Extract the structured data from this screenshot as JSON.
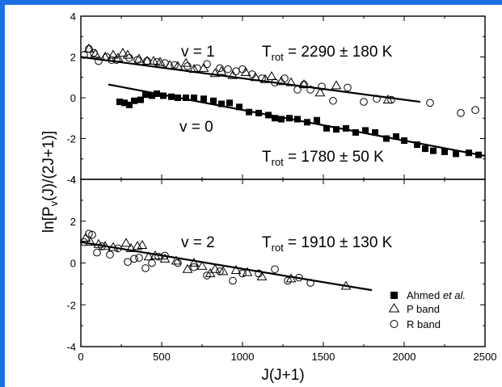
{
  "chart_data": [
    {
      "type": "scatter",
      "panel": "top",
      "xlabel": "J(J+1)",
      "ylabel": "ln[Pv(J)/(2J+1)]",
      "xlim": [
        0,
        2500
      ],
      "ylim": [
        -4,
        4
      ],
      "x_ticks": [
        "0",
        "500",
        "1000",
        "1500",
        "2000",
        "2500"
      ],
      "y_ticks": [
        "4",
        "2",
        "0",
        "-2",
        "-4"
      ],
      "annotations": [
        {
          "text": "v = 1"
        },
        {
          "text": "v = 0"
        },
        {
          "text_main": "T",
          "text_sub": "rot",
          "text_rest": " = 2290 ± 180 K"
        },
        {
          "text_main": "T",
          "text_sub": "rot",
          "text_rest": " = 1780 ± 50 K"
        }
      ],
      "series": [
        {
          "name": "Ahmed et al.",
          "marker": "filled-square",
          "points": [
            [
              240,
              -0.2
            ],
            [
              270,
              -0.25
            ],
            [
              300,
              -0.35
            ],
            [
              330,
              -0.15
            ],
            [
              370,
              -0.1
            ],
            [
              400,
              0.15
            ],
            [
              440,
              0.1
            ],
            [
              470,
              0.2
            ],
            [
              510,
              0.1
            ],
            [
              560,
              0.05
            ],
            [
              600,
              0.0
            ],
            [
              650,
              0.0
            ],
            [
              700,
              0.0
            ],
            [
              760,
              -0.05
            ],
            [
              820,
              -0.15
            ],
            [
              870,
              -0.3
            ],
            [
              920,
              -0.25
            ],
            [
              980,
              -0.45
            ],
            [
              1040,
              -0.7
            ],
            [
              1100,
              -0.75
            ],
            [
              1160,
              -0.85
            ],
            [
              1200,
              -1.0
            ],
            [
              1240,
              -1.05
            ],
            [
              1290,
              -1.0
            ],
            [
              1340,
              -1.05
            ],
            [
              1400,
              -1.2
            ],
            [
              1460,
              -1.1
            ],
            [
              1520,
              -1.5
            ],
            [
              1580,
              -1.55
            ],
            [
              1640,
              -1.5
            ],
            [
              1700,
              -1.7
            ],
            [
              1760,
              -1.6
            ],
            [
              1820,
              -1.7
            ],
            [
              1890,
              -2.0
            ],
            [
              1950,
              -1.9
            ],
            [
              2000,
              -2.1
            ],
            [
              2080,
              -2.3
            ],
            [
              2130,
              -2.5
            ],
            [
              2180,
              -2.6
            ],
            [
              2250,
              -2.65
            ],
            [
              2320,
              -2.75
            ],
            [
              2400,
              -2.7
            ],
            [
              2460,
              -2.8
            ]
          ]
        },
        {
          "name": "P band",
          "marker": "open-triangle",
          "points": [
            [
              50,
              2.4
            ],
            [
              90,
              2.15
            ],
            [
              150,
              2.0
            ],
            [
              200,
              2.1
            ],
            [
              230,
              1.95
            ],
            [
              260,
              2.2
            ],
            [
              290,
              2.1
            ],
            [
              360,
              1.9
            ],
            [
              410,
              1.8
            ],
            [
              450,
              1.8
            ],
            [
              490,
              1.75
            ],
            [
              550,
              1.6
            ],
            [
              600,
              1.55
            ],
            [
              650,
              1.7
            ],
            [
              700,
              1.4
            ],
            [
              760,
              1.45
            ],
            [
              830,
              1.2
            ],
            [
              870,
              1.3
            ],
            [
              940,
              1.1
            ],
            [
              1020,
              1.25
            ],
            [
              1080,
              1.0
            ],
            [
              1140,
              0.9
            ],
            [
              1180,
              1.05
            ],
            [
              1240,
              0.8
            ],
            [
              1300,
              0.75
            ],
            [
              1380,
              0.65
            ],
            [
              1480,
              0.25
            ],
            [
              1580,
              0.6
            ],
            [
              1900,
              -0.1
            ]
          ]
        },
        {
          "name": "R band",
          "marker": "open-circle",
          "points": [
            [
              20,
              2.1
            ],
            [
              50,
              2.4
            ],
            [
              80,
              2.2
            ],
            [
              110,
              1.8
            ],
            [
              160,
              2.0
            ],
            [
              190,
              1.85
            ],
            [
              220,
              1.85
            ],
            [
              300,
              1.95
            ],
            [
              350,
              1.85
            ],
            [
              410,
              1.8
            ],
            [
              470,
              1.75
            ],
            [
              520,
              1.7
            ],
            [
              580,
              1.6
            ],
            [
              660,
              1.55
            ],
            [
              720,
              1.45
            ],
            [
              780,
              1.65
            ],
            [
              860,
              1.45
            ],
            [
              910,
              1.4
            ],
            [
              960,
              1.3
            ],
            [
              1000,
              1.4
            ],
            [
              1060,
              1.15
            ],
            [
              1120,
              0.95
            ],
            [
              1200,
              0.75
            ],
            [
              1260,
              0.95
            ],
            [
              1340,
              0.4
            ],
            [
              1380,
              0.65
            ],
            [
              1420,
              0.4
            ],
            [
              1490,
              0.55
            ],
            [
              1560,
              -0.15
            ],
            [
              1650,
              0.5
            ],
            [
              1750,
              -0.2
            ],
            [
              1830,
              -0.05
            ],
            [
              1920,
              -0.1
            ],
            [
              2160,
              -0.25
            ],
            [
              2350,
              -0.75
            ],
            [
              2440,
              -0.6
            ]
          ]
        }
      ],
      "fit_lines": [
        {
          "x": [
            0,
            2100
          ],
          "y": [
            2.0,
            -0.2
          ]
        },
        {
          "x": [
            170,
            2500
          ],
          "y": [
            0.65,
            -2.85
          ]
        }
      ]
    },
    {
      "type": "scatter",
      "panel": "bottom",
      "xlabel": "J(J+1)",
      "ylabel": "ln[Pv(J)/(2J+1)]",
      "xlim": [
        0,
        2500
      ],
      "ylim": [
        -4,
        4
      ],
      "x_ticks": [
        "0",
        "500",
        "1000",
        "1500",
        "2000",
        "2500"
      ],
      "y_ticks": [
        "4",
        "2",
        "0",
        "-2",
        "-4"
      ],
      "annotations": [
        {
          "text": "v = 2"
        },
        {
          "text_main": "T",
          "text_sub": "rot",
          "text_rest": " = 1910 ± 130 K"
        }
      ],
      "series": [
        {
          "name": "P band",
          "marker": "open-triangle",
          "points": [
            [
              30,
              1.2
            ],
            [
              60,
              1.0
            ],
            [
              110,
              0.9
            ],
            [
              150,
              0.8
            ],
            [
              200,
              0.75
            ],
            [
              280,
              0.95
            ],
            [
              310,
              0.7
            ],
            [
              350,
              0.8
            ],
            [
              380,
              0.85
            ],
            [
              420,
              0.3
            ],
            [
              460,
              0.35
            ],
            [
              520,
              0.2
            ],
            [
              590,
              0.1
            ],
            [
              660,
              -0.3
            ],
            [
              700,
              0.0
            ],
            [
              750,
              -0.15
            ],
            [
              800,
              -0.5
            ],
            [
              830,
              -0.3
            ],
            [
              880,
              -0.4
            ],
            [
              960,
              -0.35
            ],
            [
              1030,
              -0.45
            ],
            [
              1120,
              -0.65
            ],
            [
              1300,
              -0.75
            ],
            [
              1640,
              -1.1
            ]
          ]
        },
        {
          "name": "R band",
          "marker": "open-circle",
          "points": [
            [
              20,
              1.0
            ],
            [
              50,
              1.4
            ],
            [
              70,
              1.35
            ],
            [
              100,
              0.5
            ],
            [
              130,
              0.8
            ],
            [
              180,
              0.4
            ],
            [
              230,
              0.7
            ],
            [
              290,
              0.05
            ],
            [
              330,
              0.2
            ],
            [
              360,
              0.25
            ],
            [
              400,
              -0.25
            ],
            [
              440,
              0.0
            ],
            [
              480,
              0.3
            ],
            [
              520,
              0.35
            ],
            [
              600,
              0.0
            ],
            [
              700,
              -0.2
            ],
            [
              780,
              -0.6
            ],
            [
              860,
              -0.4
            ],
            [
              940,
              -0.85
            ],
            [
              1000,
              -0.5
            ],
            [
              1100,
              -0.5
            ],
            [
              1200,
              -0.3
            ],
            [
              1280,
              -0.85
            ],
            [
              1350,
              -0.7
            ],
            [
              1420,
              -0.95
            ]
          ]
        }
      ],
      "fit_lines": [
        {
          "x": [
            0,
            1800
          ],
          "y": [
            1.0,
            -1.3
          ]
        }
      ]
    }
  ],
  "legend": {
    "placement": "bottom-right",
    "entries": [
      {
        "marker": "filled-square",
        "label_main": "Ahmed ",
        "label_italic": "et al."
      },
      {
        "marker": "open-triangle",
        "label_main": "P band",
        "label_italic": ""
      },
      {
        "marker": "open-circle",
        "label_main": "R band",
        "label_italic": ""
      }
    ]
  },
  "y_axis_label": {
    "main": "ln[P",
    "sub": "v",
    "rest": "(J)/(2J+1)]"
  },
  "x_axis_label": "J(J+1)",
  "colors": {
    "frame": "#1c6fe0",
    "ink": "#000000",
    "background": "#ffffff"
  }
}
